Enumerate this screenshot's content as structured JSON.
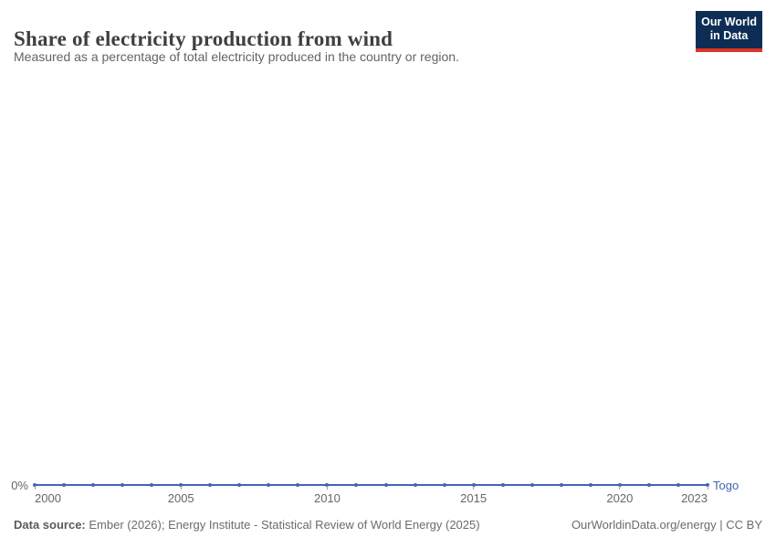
{
  "header": {
    "title": "Share of electricity production from wind",
    "subtitle": "Measured as a percentage of total electricity produced in the country or region.",
    "logo": {
      "line1": "Our World",
      "line2": "in Data"
    }
  },
  "chart_data": {
    "type": "line",
    "title": "Share of electricity production from wind",
    "subtitle": "Measured as a percentage of total electricity produced in the country or region.",
    "x": [
      2000,
      2001,
      2002,
      2003,
      2004,
      2005,
      2006,
      2007,
      2008,
      2009,
      2010,
      2011,
      2012,
      2013,
      2014,
      2015,
      2016,
      2017,
      2018,
      2019,
      2020,
      2021,
      2022,
      2023
    ],
    "x_ticks": [
      2000,
      2005,
      2010,
      2015,
      2020,
      2023
    ],
    "y_ticks": [
      "0%"
    ],
    "ylim": [
      0,
      1
    ],
    "grid": false,
    "legend_position": "end-of-line",
    "series": [
      {
        "name": "Togo",
        "unit": "%",
        "values": [
          0,
          0,
          0,
          0,
          0,
          0,
          0,
          0,
          0,
          0,
          0,
          0,
          0,
          0,
          0,
          0,
          0,
          0,
          0,
          0,
          0,
          0,
          0,
          0
        ]
      }
    ]
  },
  "axis": {
    "zero_label": "0%",
    "entity_label": "Togo"
  },
  "footer": {
    "source_label": "Data source:",
    "source_text": " Ember (2026); Energy Institute - Statistical Review of World Energy (2025)",
    "credit": "OurWorldinData.org/energy | CC BY"
  },
  "colors": {
    "line": "#4266b0",
    "axis_text": "#666666",
    "logo_bg": "#0d2d55",
    "logo_accent": "#dc3425"
  }
}
